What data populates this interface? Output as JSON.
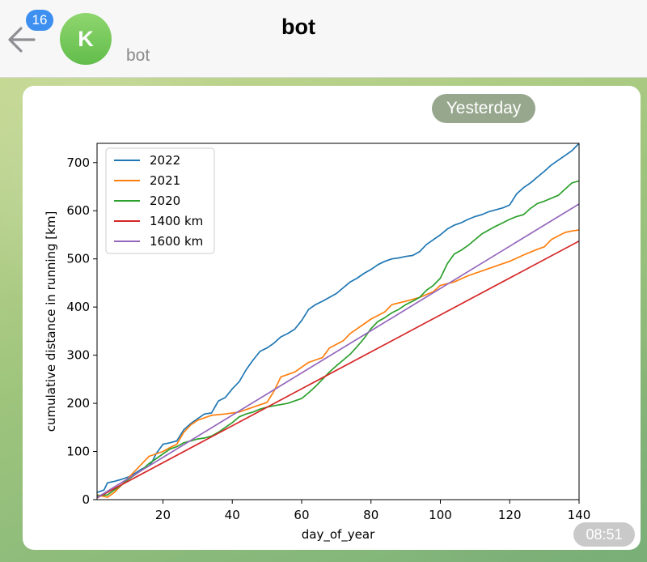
{
  "header": {
    "unread_count": "16",
    "avatar_letter": "K",
    "title": "bot",
    "subtitle": "bot"
  },
  "message": {
    "date_label": "Yesterday",
    "time": "08:51"
  },
  "colors": {
    "2022": "#1f77b4",
    "2021": "#ff7f0e",
    "2020": "#2ca02c",
    "1400 km": "#d62728",
    "1600 km": "#9467bd"
  },
  "chart_data": {
    "type": "line",
    "title": "",
    "xlabel": "day_of_year",
    "ylabel": "cumulative distance in running [km]",
    "xlim": [
      1,
      140
    ],
    "ylim": [
      0,
      740
    ],
    "xticks": [
      20,
      40,
      60,
      80,
      100,
      120,
      140
    ],
    "yticks": [
      0,
      100,
      200,
      300,
      400,
      500,
      600,
      700
    ],
    "grid": false,
    "legend_position": "upper-left",
    "series": [
      {
        "name": "2022",
        "color": "#1f77b4",
        "x": [
          1,
          3,
          4,
          6,
          8,
          10,
          12,
          14,
          16,
          17,
          18,
          20,
          22,
          24,
          26,
          28,
          30,
          32,
          34,
          36,
          38,
          40,
          42,
          44,
          46,
          48,
          50,
          52,
          54,
          56,
          58,
          60,
          62,
          64,
          66,
          68,
          70,
          72,
          74,
          76,
          78,
          80,
          82,
          84,
          86,
          88,
          90,
          92,
          94,
          96,
          98,
          100,
          102,
          104,
          106,
          108,
          110,
          112,
          114,
          116,
          118,
          120,
          122,
          124,
          126,
          128,
          130,
          132,
          134,
          136,
          138,
          140
        ],
        "y": [
          15,
          20,
          35,
          38,
          42,
          47,
          55,
          64,
          70,
          80,
          95,
          115,
          118,
          122,
          145,
          158,
          168,
          178,
          180,
          205,
          212,
          230,
          245,
          270,
          290,
          308,
          315,
          325,
          338,
          345,
          354,
          372,
          395,
          405,
          412,
          420,
          428,
          440,
          452,
          460,
          470,
          478,
          488,
          495,
          500,
          502,
          505,
          507,
          515,
          530,
          540,
          550,
          562,
          570,
          575,
          582,
          588,
          592,
          598,
          602,
          606,
          612,
          635,
          648,
          658,
          670,
          682,
          695,
          705,
          715,
          725,
          740
        ],
        "width": 1.7
      },
      {
        "name": "2021",
        "color": "#ff7f0e",
        "x": [
          1,
          4,
          6,
          8,
          10,
          12,
          14,
          16,
          18,
          20,
          22,
          24,
          26,
          28,
          30,
          34,
          38,
          42,
          46,
          50,
          52,
          54,
          58,
          62,
          66,
          68,
          72,
          74,
          76,
          78,
          80,
          84,
          86,
          90,
          94,
          98,
          100,
          104,
          108,
          112,
          116,
          120,
          124,
          128,
          130,
          132,
          134,
          136,
          138,
          140
        ],
        "y": [
          10,
          5,
          15,
          30,
          45,
          60,
          75,
          90,
          95,
          100,
          108,
          115,
          140,
          155,
          165,
          175,
          178,
          182,
          192,
          202,
          225,
          255,
          265,
          285,
          295,
          315,
          330,
          345,
          355,
          365,
          375,
          390,
          405,
          412,
          420,
          432,
          445,
          452,
          465,
          475,
          485,
          495,
          508,
          520,
          525,
          540,
          548,
          555,
          558,
          560
        ],
        "width": 1.7
      },
      {
        "name": "2020",
        "color": "#2ca02c",
        "x": [
          1,
          4,
          6,
          8,
          10,
          12,
          14,
          16,
          18,
          20,
          22,
          24,
          26,
          28,
          30,
          32,
          34,
          36,
          38,
          40,
          42,
          44,
          46,
          48,
          50,
          52,
          56,
          58,
          60,
          62,
          64,
          66,
          68,
          70,
          72,
          74,
          76,
          78,
          80,
          82,
          84,
          86,
          88,
          90,
          92,
          94,
          96,
          98,
          100,
          102,
          104,
          106,
          108,
          110,
          112,
          114,
          116,
          118,
          120,
          122,
          124,
          126,
          128,
          130,
          132,
          134,
          136,
          138,
          140
        ],
        "y": [
          8,
          10,
          20,
          30,
          42,
          52,
          62,
          75,
          85,
          95,
          105,
          110,
          118,
          122,
          126,
          128,
          132,
          140,
          150,
          160,
          172,
          178,
          182,
          188,
          192,
          195,
          200,
          205,
          210,
          222,
          235,
          250,
          265,
          278,
          290,
          302,
          318,
          335,
          355,
          370,
          378,
          388,
          395,
          405,
          412,
          420,
          435,
          445,
          460,
          490,
          510,
          518,
          528,
          540,
          552,
          560,
          568,
          575,
          582,
          588,
          592,
          605,
          615,
          620,
          626,
          632,
          645,
          658,
          662
        ],
        "width": 1.7
      },
      {
        "name": "1400 km",
        "color": "#d62728",
        "x": [
          1,
          140
        ],
        "y": [
          3.8,
          537
        ],
        "width": 1.7
      },
      {
        "name": "1600 km",
        "color": "#9467bd",
        "x": [
          1,
          140
        ],
        "y": [
          4.4,
          614
        ],
        "width": 1.7
      }
    ]
  }
}
